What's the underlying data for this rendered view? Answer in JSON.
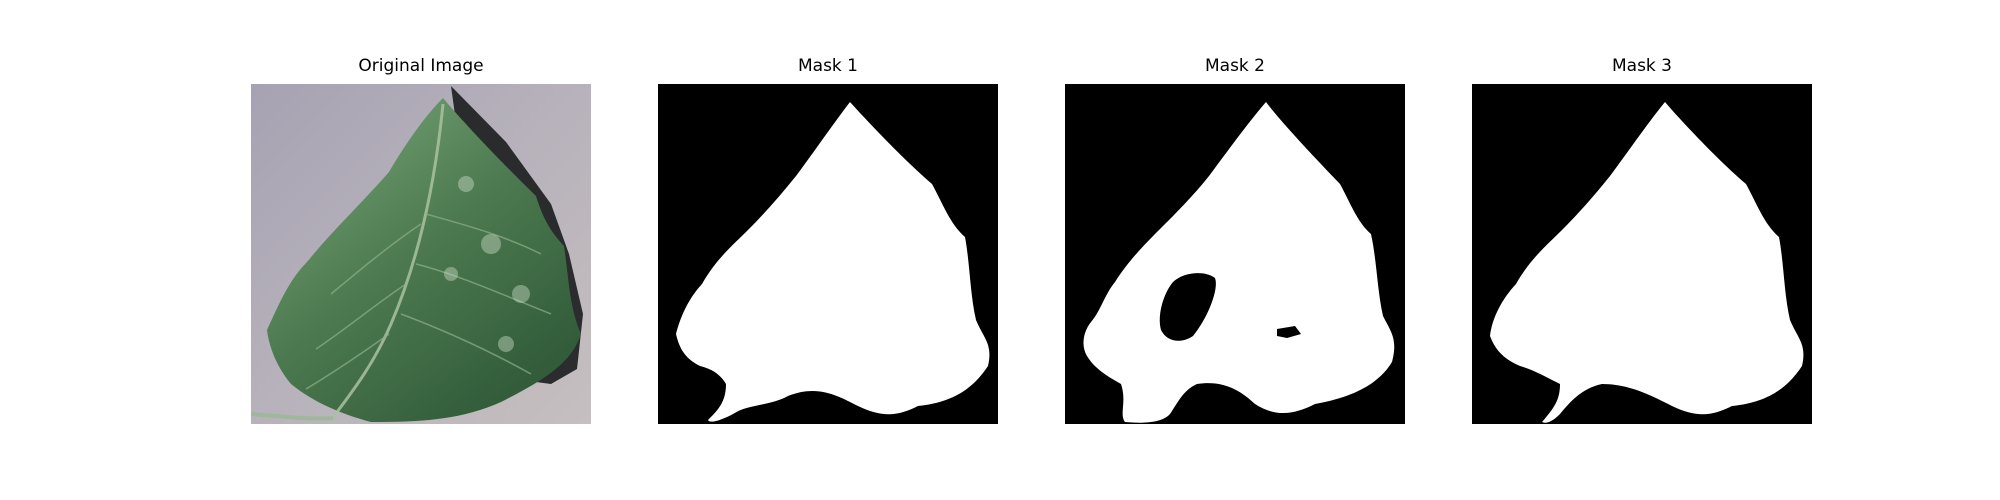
{
  "figure": {
    "panels": [
      {
        "title": "Original Image"
      },
      {
        "title": "Mask 1"
      },
      {
        "title": "Mask 2"
      },
      {
        "title": "Mask 3"
      }
    ]
  },
  "colors": {
    "background": "#ffffff",
    "mask_foreground": "#ffffff",
    "mask_background": "#000000",
    "leaf_dark": "#3e6a42",
    "leaf_light": "#5f8a5c",
    "surface": "#b2adb8"
  }
}
